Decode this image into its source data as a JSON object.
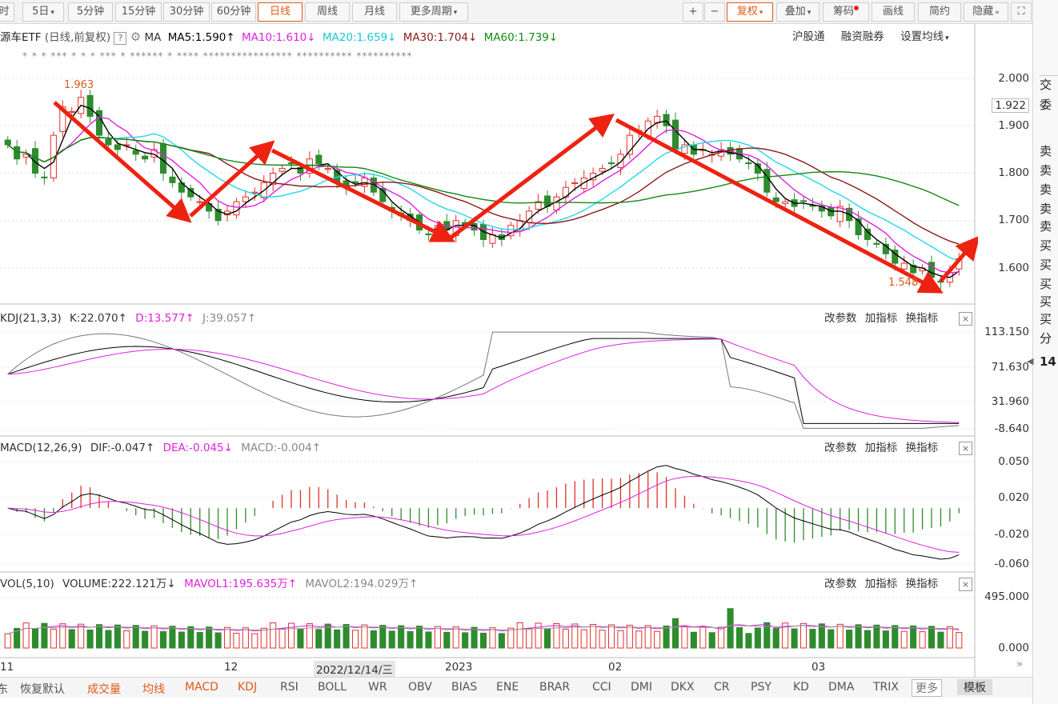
{
  "toolbar": {
    "periods": [
      "时",
      "5日",
      "5分钟",
      "15分钟",
      "30分钟",
      "60分钟",
      "日线",
      "周线",
      "月线",
      "更多周期"
    ],
    "active_period": "日线",
    "right_buttons": [
      "+",
      "−",
      "复权",
      "叠加",
      "筹码",
      "画线",
      "简约",
      "隐藏"
    ],
    "more_glyph": "▾"
  },
  "ma_line": {
    "title": "源车ETF",
    "mode": "(日线,前复权)",
    "help": "?",
    "gear": "gear-icon",
    "ma": "MA",
    "ma5": "MA5:1.590",
    "ma10": "MA10:1.610",
    "ma20": "MA20:1.659",
    "ma30": "MA30:1.704",
    "ma60": "MA60:1.739",
    "arrows": {
      "ma5": "↑",
      "ma10": "↓",
      "ma20": "↓",
      "ma30": "↓",
      "ma60": "↓"
    },
    "links": [
      "沪股通",
      "融资融券",
      "设置均线"
    ]
  },
  "stars": {
    "row": "*    *    *    ***  *  *  *    ***     *  ******  *  ****    ****************   **********    **********"
  },
  "price_axis": [
    "2.000",
    "1.922",
    "1.900",
    "1.800",
    "1.700",
    "1.600"
  ],
  "price_labels": {
    "high": "1.963",
    "low": "1.548"
  },
  "kdj": {
    "title": "KDJ(21,3,3)",
    "k": "K:22.070",
    "d": "D:13.577",
    "j": "J:39.057",
    "axis": [
      "113.150",
      "71.630",
      "31.960",
      "-8.640"
    ]
  },
  "macd": {
    "title": "MACD(12,26,9)",
    "dif": "DIF:-0.047",
    "dea": "DEA:-0.045",
    "macd": "MACD:-0.004",
    "axis": [
      "0.050",
      "0.020",
      "-0.020",
      "-0.060"
    ]
  },
  "vol": {
    "title": "VOL(5,10)",
    "volume": "VOLUME:222.121万",
    "mavol1": "MAVOL1:195.635万",
    "mavol2": "MAVOL2:194.029万",
    "axis": [
      "495.000",
      "0.000"
    ]
  },
  "panel_buttons": [
    "改参数",
    "加指标",
    "换指标"
  ],
  "close": "×",
  "x_axis": [
    "11",
    "12",
    "2022/12/14/三",
    "2023",
    "02",
    "03"
  ],
  "bottom_tabs": [
    "东",
    "恢复默认",
    "成交量",
    "均线",
    "MACD",
    "KDJ",
    "RSI",
    "BOLL",
    "WR",
    "OBV",
    "BIAS",
    "ENE",
    "BRAR",
    "CCI",
    "DMI",
    "DKX",
    "CR",
    "PSY",
    "KD",
    "DMA",
    "TRIX",
    "更多",
    "模板"
  ],
  "right_panel": [
    "交",
    "委",
    "卖",
    "卖",
    "卖",
    "卖",
    "卖",
    "买",
    "买",
    "买",
    "买",
    "买",
    "分",
    "14"
  ],
  "colors": {
    "up": "#e0302a",
    "down": "#2e8b2e",
    "ma5": "#000000",
    "ma10": "#e020e0",
    "ma20": "#20d8e8",
    "ma30": "#8b1a1a",
    "ma60": "#138a13",
    "accent": "#e05a1a",
    "arrow": "#ee2211"
  },
  "chart_data": {
    "type": "candlestick",
    "note_free": true,
    "closes": [
      1.86,
      1.83,
      1.84,
      1.8,
      1.79,
      1.88,
      1.94,
      1.93,
      1.96,
      1.92,
      1.88,
      1.86,
      1.85,
      1.86,
      1.84,
      1.83,
      1.85,
      1.8,
      1.78,
      1.76,
      1.75,
      1.74,
      1.72,
      1.7,
      1.72,
      1.74,
      1.75,
      1.76,
      1.78,
      1.8,
      1.81,
      1.82,
      1.8,
      1.83,
      1.82,
      1.81,
      1.78,
      1.77,
      1.78,
      1.79,
      1.76,
      1.74,
      1.72,
      1.71,
      1.7,
      1.68,
      1.67,
      1.69,
      1.68,
      1.7,
      1.69,
      1.68,
      1.66,
      1.67,
      1.66,
      1.69,
      1.7,
      1.72,
      1.74,
      1.73,
      1.75,
      1.77,
      1.78,
      1.79,
      1.8,
      1.81,
      1.82,
      1.84,
      1.88,
      1.89,
      1.91,
      1.92,
      1.9,
      1.85,
      1.86,
      1.84,
      1.85,
      1.84,
      1.85,
      1.84,
      1.83,
      1.82,
      1.8,
      1.76,
      1.74,
      1.74,
      1.73,
      1.74,
      1.73,
      1.72,
      1.71,
      1.73,
      1.7,
      1.67,
      1.66,
      1.65,
      1.63,
      1.61,
      1.61,
      1.59,
      1.6,
      1.58,
      1.57,
      1.59,
      1.62
    ],
    "ma5_end": 1.59,
    "ma10_end": 1.61,
    "ma20_end": 1.659,
    "ma30_end": 1.704,
    "ma60_end": 1.739
  }
}
